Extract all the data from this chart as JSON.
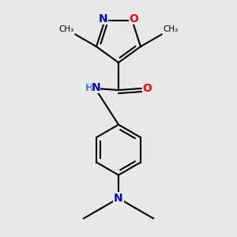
{
  "bg_color": "#e8e8e8",
  "bond_color": "#000000",
  "N_color": "#0000cd",
  "O_color": "#ff0000",
  "NH_color": "#4682b4",
  "line_width": 1.5,
  "font_size": 10,
  "fig_size": [
    3.0,
    3.0
  ],
  "dpi": 100,
  "xlim": [
    -2.5,
    2.5
  ],
  "ylim": [
    -4.2,
    3.0
  ]
}
